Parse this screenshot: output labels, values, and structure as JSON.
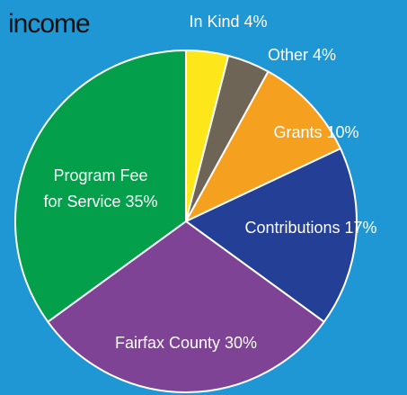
{
  "chart_data": {
    "type": "pie",
    "title": "income",
    "slices": [
      {
        "label": "In Kind",
        "value": 4,
        "value_label": "4%",
        "color": "#fde619"
      },
      {
        "label": "Other",
        "value": 4,
        "value_label": "4%",
        "color": "#6e6557"
      },
      {
        "label": "Grants",
        "value": 10,
        "value_label": "10%",
        "color": "#f6a01f"
      },
      {
        "label": "Contributions",
        "value": 17,
        "value_label": "17%",
        "color": "#243f96"
      },
      {
        "label": "Fairfax County",
        "value": 30,
        "value_label": "30%",
        "color": "#7e4394"
      },
      {
        "label": "Program Fee for Service",
        "label_lines": [
          "Program Fee",
          "for Service"
        ],
        "value": 35,
        "value_label": "35%",
        "color": "#049f4a"
      }
    ],
    "start": "12 o'clock",
    "direction": "clockwise",
    "legend": "none"
  },
  "colors": {
    "background": "#1f97d4",
    "title": "#111111",
    "label_text": "#ffffff",
    "slice_border": "#ffffff"
  }
}
